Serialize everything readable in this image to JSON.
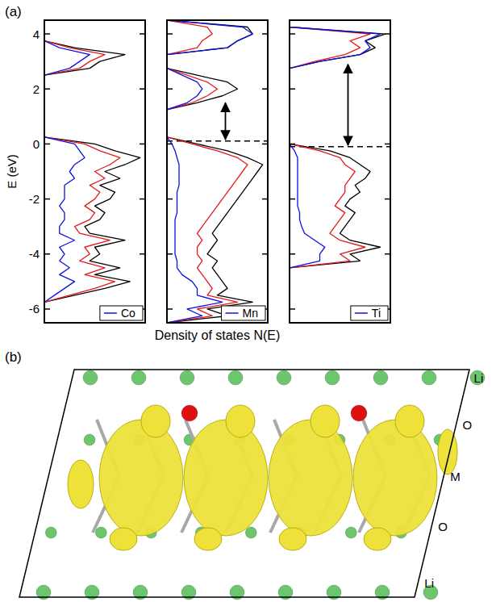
{
  "figure": {
    "panel_a": "(a)",
    "panel_b": "(b)",
    "x_label": "Density of states N(E)"
  },
  "chart_data": [
    {
      "type": "line",
      "orientation": "horizontal",
      "y_label": "E (eV)",
      "x": [
        -6.5,
        -6.25,
        -6,
        -5.75,
        -5.5,
        -5.25,
        -5,
        -4.75,
        -4.5,
        -4.25,
        -4,
        -3.75,
        -3.5,
        -3.25,
        -3,
        -2.75,
        -2.5,
        -2.25,
        -2,
        -1.75,
        -1.5,
        -1.25,
        -1,
        -0.75,
        -0.5,
        -0.25,
        0,
        0.25,
        0.5,
        0.75,
        1,
        1.25,
        1.5,
        1.75,
        2,
        2.25,
        2.5,
        2.75,
        3,
        3.25,
        3.5,
        3.75,
        4,
        4.25,
        4.5
      ],
      "xlim": [
        -6.5,
        4.5
      ],
      "xticks": [
        -6,
        -4,
        -2,
        0,
        2,
        4
      ],
      "ylim": [
        0,
        1
      ],
      "tick_labels": "x",
      "legend": "lower right",
      "series": [
        {
          "color": "#000000",
          "values": [
            0,
            0,
            0,
            0,
            0.3,
            0.6,
            0.85,
            0.5,
            0.75,
            0.45,
            0.55,
            0.5,
            0.8,
            0.45,
            0.4,
            0.55,
            0.6,
            0.5,
            0.65,
            0.7,
            0.55,
            0.75,
            0.6,
            0.8,
            0.95,
            0.7,
            0.5,
            0,
            0,
            0,
            0,
            0,
            0,
            0,
            0,
            0,
            0,
            0.45,
            0.55,
            0.8,
            0.3,
            0,
            0,
            0,
            0
          ]
        },
        {
          "color": "#e31a1c",
          "values": [
            0,
            0,
            0,
            0,
            0.25,
            0.5,
            0.7,
            0.4,
            0.6,
            0.35,
            0.45,
            0.4,
            0.65,
            0.35,
            0.3,
            0.45,
            0.5,
            0.4,
            0.5,
            0.55,
            0.45,
            0.6,
            0.5,
            0.65,
            0.75,
            0.55,
            0.4,
            0,
            0,
            0,
            0,
            0,
            0,
            0,
            0,
            0,
            0,
            0.35,
            0.45,
            0.6,
            0.25,
            0,
            0,
            0,
            0
          ]
        },
        {
          "name": "Co",
          "color": "#1010e0",
          "values": [
            0,
            0,
            0,
            0,
            0.1,
            0.2,
            0.3,
            0.15,
            0.25,
            0.15,
            0.2,
            0.15,
            0.3,
            0.15,
            0.15,
            0.2,
            0.2,
            0.15,
            0.2,
            0.2,
            0.2,
            0.3,
            0.25,
            0.3,
            0.4,
            0.35,
            0.3,
            0,
            0,
            0,
            0,
            0,
            0,
            0,
            0,
            0,
            0,
            0.25,
            0.35,
            0.45,
            0.15,
            0,
            0,
            0,
            0
          ]
        }
      ]
    },
    {
      "type": "line",
      "orientation": "horizontal",
      "x": [
        -6.5,
        -6.25,
        -6,
        -5.75,
        -5.5,
        -5.25,
        -5,
        -4.75,
        -4.5,
        -4.25,
        -4,
        -3.75,
        -3.5,
        -3.25,
        -3,
        -2.75,
        -2.5,
        -2.25,
        -2,
        -1.75,
        -1.5,
        -1.25,
        -1,
        -0.75,
        -0.5,
        -0.25,
        0,
        0.25,
        0.5,
        0.75,
        1,
        1.25,
        1.5,
        1.75,
        2,
        2.25,
        2.5,
        2.75,
        3,
        3.25,
        3.5,
        3.75,
        4,
        4.25,
        4.5
      ],
      "xlim": [
        -6.5,
        4.5
      ],
      "xticks": [
        -6,
        -4,
        -2,
        0,
        2,
        4
      ],
      "ylim": [
        0,
        1
      ],
      "tick_labels": false,
      "legend": "lower right",
      "gap": [
        0.11,
        1.55
      ],
      "series": [
        {
          "color": "#000000",
          "values": [
            0,
            0.6,
            0.4,
            0.85,
            0.5,
            0.6,
            0.55,
            0.5,
            0.45,
            0.5,
            0.4,
            0.45,
            0.5,
            0.45,
            0.5,
            0.55,
            0.6,
            0.65,
            0.7,
            0.75,
            0.8,
            0.85,
            0.9,
            0.95,
            0.8,
            0.6,
            0.3,
            0,
            0,
            0,
            0,
            0,
            0.3,
            0.55,
            0.7,
            0.6,
            0.3,
            0,
            0,
            0,
            0.6,
            0.7,
            0.85,
            0.8,
            0
          ]
        },
        {
          "color": "#e31a1c",
          "values": [
            0,
            0.45,
            0.3,
            0.7,
            0.4,
            0.45,
            0.4,
            0.35,
            0.3,
            0.35,
            0.3,
            0.3,
            0.35,
            0.3,
            0.35,
            0.4,
            0.45,
            0.5,
            0.55,
            0.6,
            0.65,
            0.7,
            0.75,
            0.8,
            0.7,
            0.5,
            0.25,
            0,
            0,
            0,
            0,
            0,
            0.25,
            0.4,
            0.5,
            0.4,
            0.2,
            0,
            0,
            0,
            0.3,
            0.35,
            0.45,
            0.4,
            0
          ]
        },
        {
          "name": "Mn",
          "color": "#1010e0",
          "values": [
            0,
            0.35,
            0.2,
            0.55,
            0.3,
            0.3,
            0.25,
            0.15,
            0.1,
            0.1,
            0.08,
            0.08,
            0.08,
            0.08,
            0.08,
            0.08,
            0.1,
            0.1,
            0.1,
            0.1,
            0.12,
            0.12,
            0.12,
            0.12,
            0.1,
            0.08,
            0.05,
            0,
            0,
            0,
            0,
            0,
            0.2,
            0.3,
            0.35,
            0.3,
            0.15,
            0,
            0,
            0,
            0.6,
            0.7,
            0.85,
            0.75,
            0
          ]
        }
      ]
    },
    {
      "type": "line",
      "orientation": "horizontal",
      "x": [
        -6.5,
        -6.25,
        -6,
        -5.75,
        -5.5,
        -5.25,
        -5,
        -4.75,
        -4.5,
        -4.25,
        -4,
        -3.75,
        -3.5,
        -3.25,
        -3,
        -2.75,
        -2.5,
        -2.25,
        -2,
        -1.75,
        -1.5,
        -1.25,
        -1,
        -0.75,
        -0.5,
        -0.25,
        0,
        0.25,
        0.5,
        0.75,
        1,
        1.25,
        1.5,
        1.75,
        2,
        2.25,
        2.5,
        2.75,
        3,
        3.25,
        3.5,
        3.75,
        4,
        4.25,
        4.5
      ],
      "xlim": [
        -6.5,
        4.5
      ],
      "xticks": [
        -6,
        -4,
        -2,
        0,
        2,
        4
      ],
      "ylim": [
        0,
        1
      ],
      "tick_labels": false,
      "legend": "lower right",
      "gap": [
        -0.1,
        2.95
      ],
      "series": [
        {
          "color": "#000000",
          "values": [
            0,
            0,
            0,
            0,
            0,
            0,
            0,
            0,
            0,
            0.7,
            0.6,
            0.9,
            0.6,
            0.5,
            0.55,
            0.6,
            0.65,
            0.55,
            0.6,
            0.7,
            0.65,
            0.75,
            0.8,
            0.7,
            0.6,
            0.4,
            0,
            0,
            0,
            0,
            0,
            0,
            0,
            0,
            0,
            0,
            0,
            0,
            0.3,
            0.7,
            0.85,
            0.75,
            0.95,
            0,
            0
          ]
        },
        {
          "color": "#e31a1c",
          "values": [
            0,
            0,
            0,
            0,
            0,
            0,
            0,
            0,
            0,
            0.6,
            0.5,
            0.75,
            0.5,
            0.4,
            0.45,
            0.5,
            0.55,
            0.45,
            0.5,
            0.55,
            0.55,
            0.6,
            0.65,
            0.55,
            0.5,
            0.3,
            0,
            0,
            0,
            0,
            0,
            0,
            0,
            0,
            0,
            0,
            0,
            0,
            0.25,
            0.55,
            0.7,
            0.6,
            0.8,
            0,
            0
          ]
        },
        {
          "name": "Ti",
          "color": "#1010e0",
          "values": [
            0,
            0,
            0,
            0,
            0,
            0,
            0,
            0,
            0,
            0.3,
            0.3,
            0.35,
            0.25,
            0.15,
            0.12,
            0.1,
            0.1,
            0.08,
            0.08,
            0.08,
            0.08,
            0.08,
            0.08,
            0.08,
            0.08,
            0.05,
            0,
            0,
            0,
            0,
            0,
            0,
            0,
            0,
            0,
            0,
            0,
            0,
            0.3,
            0.7,
            0.8,
            0.75,
            0.9,
            0,
            0
          ]
        }
      ]
    }
  ],
  "structure": {
    "layer_labels": [
      "Li",
      "O",
      "M",
      "O",
      "Li"
    ]
  }
}
